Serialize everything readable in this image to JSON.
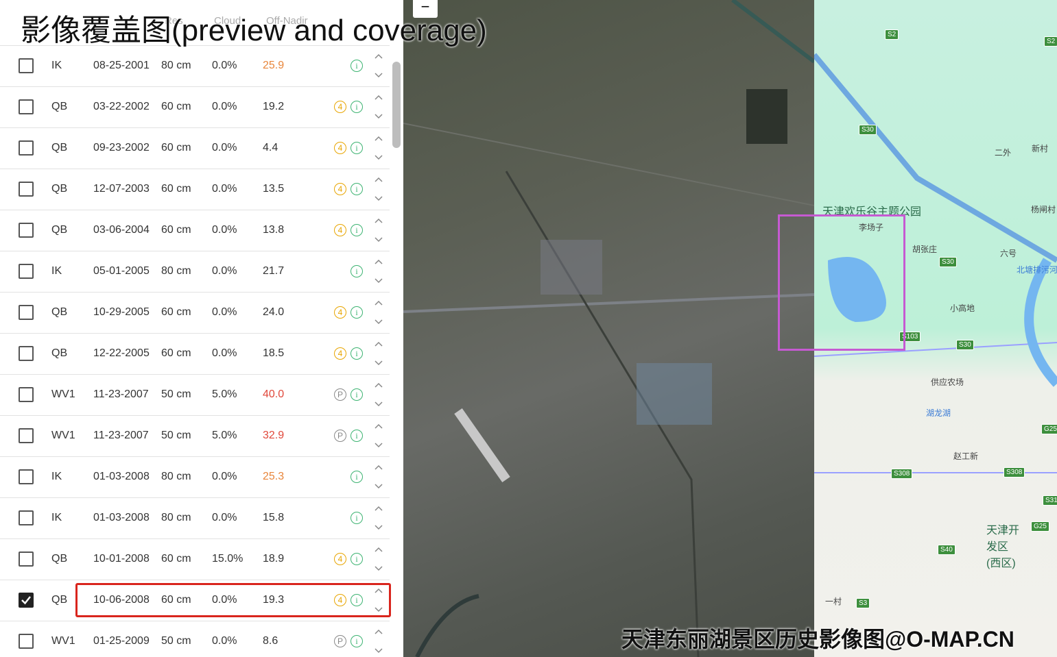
{
  "title": "影像覆盖图(preview and coverage)",
  "header": [
    "Res",
    "Cloud",
    "Off-Nadir"
  ],
  "info_icon": "i",
  "zoom_out": "−",
  "rows": [
    {
      "sat": "IK",
      "date": "08-25-2001",
      "res": "80 cm",
      "cloud": "0.0%",
      "off_nadir": "25.9",
      "off_nadir_color": "#e8853a",
      "badge": null,
      "checked": false
    },
    {
      "sat": "QB",
      "date": "03-22-2002",
      "res": "60 cm",
      "cloud": "0.0%",
      "off_nadir": "19.2",
      "off_nadir_color": "#333333",
      "badge": "4",
      "checked": false
    },
    {
      "sat": "QB",
      "date": "09-23-2002",
      "res": "60 cm",
      "cloud": "0.0%",
      "off_nadir": "4.4",
      "off_nadir_color": "#333333",
      "badge": "4",
      "checked": false
    },
    {
      "sat": "QB",
      "date": "12-07-2003",
      "res": "60 cm",
      "cloud": "0.0%",
      "off_nadir": "13.5",
      "off_nadir_color": "#333333",
      "badge": "4",
      "checked": false
    },
    {
      "sat": "QB",
      "date": "03-06-2004",
      "res": "60 cm",
      "cloud": "0.0%",
      "off_nadir": "13.8",
      "off_nadir_color": "#333333",
      "badge": "4",
      "checked": false
    },
    {
      "sat": "IK",
      "date": "05-01-2005",
      "res": "80 cm",
      "cloud": "0.0%",
      "off_nadir": "21.7",
      "off_nadir_color": "#333333",
      "badge": null,
      "checked": false
    },
    {
      "sat": "QB",
      "date": "10-29-2005",
      "res": "60 cm",
      "cloud": "0.0%",
      "off_nadir": "24.0",
      "off_nadir_color": "#333333",
      "badge": "4",
      "checked": false
    },
    {
      "sat": "QB",
      "date": "12-22-2005",
      "res": "60 cm",
      "cloud": "0.0%",
      "off_nadir": "18.5",
      "off_nadir_color": "#333333",
      "badge": "4",
      "checked": false
    },
    {
      "sat": "WV1",
      "date": "11-23-2007",
      "res": "50 cm",
      "cloud": "5.0%",
      "off_nadir": "40.0",
      "off_nadir_color": "#e0473a",
      "badge": "P",
      "checked": false
    },
    {
      "sat": "WV1",
      "date": "11-23-2007",
      "res": "50 cm",
      "cloud": "5.0%",
      "off_nadir": "32.9",
      "off_nadir_color": "#e0473a",
      "badge": "P",
      "checked": false
    },
    {
      "sat": "IK",
      "date": "01-03-2008",
      "res": "80 cm",
      "cloud": "0.0%",
      "off_nadir": "25.3",
      "off_nadir_color": "#e8853a",
      "badge": null,
      "checked": false
    },
    {
      "sat": "IK",
      "date": "01-03-2008",
      "res": "80 cm",
      "cloud": "0.0%",
      "off_nadir": "15.8",
      "off_nadir_color": "#333333",
      "badge": null,
      "checked": false
    },
    {
      "sat": "QB",
      "date": "10-01-2008",
      "res": "60 cm",
      "cloud": "15.0%",
      "off_nadir": "18.9",
      "off_nadir_color": "#333333",
      "badge": "4",
      "checked": false
    },
    {
      "sat": "QB",
      "date": "10-06-2008",
      "res": "60 cm",
      "cloud": "0.0%",
      "off_nadir": "19.3",
      "off_nadir_color": "#333333",
      "badge": "4",
      "checked": true
    },
    {
      "sat": "WV1",
      "date": "01-25-2009",
      "res": "50 cm",
      "cloud": "0.0%",
      "off_nadir": "8.6",
      "off_nadir_color": "#333333",
      "badge": "P",
      "checked": false
    }
  ],
  "map_labels": [
    "S2",
    "S2",
    "S30",
    "二外",
    "新村",
    "杨闸村",
    "天津欢乐谷主题公园",
    "李场子",
    "胡张庄",
    "六号",
    "S30",
    "北塘排污河",
    "小高地",
    "S103",
    "S30",
    "供应农场",
    "湖龙湖",
    "G25",
    "赵工新",
    "S308",
    "S308",
    "S31",
    "天津开发区(西区)",
    "G25",
    "S40",
    "一村",
    "S3"
  ],
  "watermark": "天津东丽湖景区历史影像图@O-MAP.CN"
}
